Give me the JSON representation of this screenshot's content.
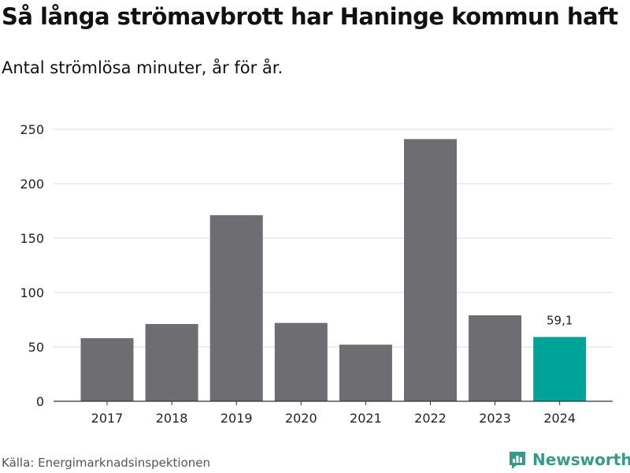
{
  "title": "Så långa strömavbrott har Haninge kommun haft",
  "subtitle": "Antal strömlösa minuter, år för år.",
  "source": "Källa: Energimarknadsinspektionen",
  "brand": {
    "name": "Newsworthy",
    "icon": "newsworthy-logo-icon"
  },
  "colors": {
    "bar": "#6e6d72",
    "highlight": "#00a398",
    "grid": "#dddddd",
    "axis": "#333333",
    "brand": "#3a9a8a"
  },
  "chart_data": {
    "type": "bar",
    "title": "Så långa strömavbrott har Haninge kommun haft",
    "subtitle": "Antal strömlösa minuter, år för år.",
    "xlabel": "",
    "ylabel": "",
    "categories": [
      "2017",
      "2018",
      "2019",
      "2020",
      "2021",
      "2022",
      "2023",
      "2024"
    ],
    "values": [
      58,
      71,
      171,
      72,
      52,
      241,
      79,
      59.1
    ],
    "highlight_index": 7,
    "data_labels": [
      {
        "category": "2024",
        "text": "59,1"
      }
    ],
    "yticks": [
      0,
      50,
      100,
      150,
      200,
      250
    ],
    "ylim": [
      0,
      250
    ],
    "grid": true
  }
}
